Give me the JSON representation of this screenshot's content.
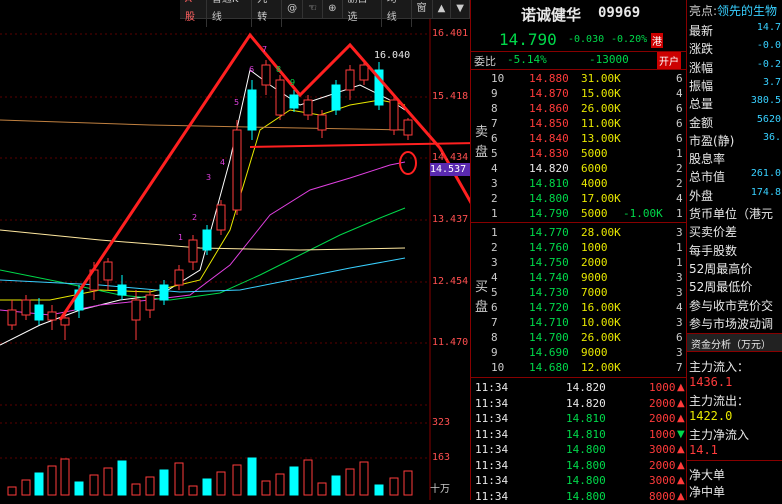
{
  "chart": {
    "tab_a": "A股",
    "toolbar": [
      "普通K线",
      "九转",
      "@",
      "☜",
      "⊕",
      "删自选",
      "均线",
      "窗",
      "▲",
      "▼"
    ],
    "price_ticks": [
      "16.401",
      "15.418",
      "14.434",
      "13.437",
      "12.454",
      "11.470"
    ],
    "current_price_tag": "14.537",
    "high_label": "16.040",
    "volume_ticks": [
      "323",
      "163",
      "十万"
    ],
    "countdown_left": [
      "1",
      "2",
      "3",
      "4",
      "5",
      "6",
      "7"
    ],
    "countdown_right": [
      "8",
      "9"
    ]
  },
  "quote": {
    "name": "诺诚健华",
    "code": "09969",
    "price": "14.790",
    "change": "-0.030",
    "change_pct": "-0.20%",
    "market_tag": "港",
    "weibi_label": "委比",
    "weibi_pct": "-5.14%",
    "weibi_val": "-13000",
    "open_btn": "开户",
    "sell_label": [
      "卖",
      "盘"
    ],
    "buy_label": [
      "买",
      "盘"
    ],
    "asks": [
      {
        "lvl": "10",
        "price": "14.880",
        "vol": "31.00K",
        "cnt": "6"
      },
      {
        "lvl": "9",
        "price": "14.870",
        "vol": "15.00K",
        "cnt": "4"
      },
      {
        "lvl": "8",
        "price": "14.860",
        "vol": "26.00K",
        "cnt": "6"
      },
      {
        "lvl": "7",
        "price": "14.850",
        "vol": "11.00K",
        "cnt": "6"
      },
      {
        "lvl": "6",
        "price": "14.840",
        "vol": "13.00K",
        "cnt": "6"
      },
      {
        "lvl": "5",
        "price": "14.830",
        "vol": "5000",
        "cnt": "1"
      },
      {
        "lvl": "4",
        "price": "14.820",
        "vol": "6000",
        "cnt": "2"
      },
      {
        "lvl": "3",
        "price": "14.810",
        "vol": "4000",
        "cnt": "2"
      },
      {
        "lvl": "2",
        "price": "14.800",
        "vol": "17.00K",
        "cnt": "4"
      },
      {
        "lvl": "1",
        "price": "14.790",
        "vol": "5000",
        "cnt": "1",
        "chg": "-1.00K"
      }
    ],
    "bids": [
      {
        "lvl": "1",
        "price": "14.770",
        "vol": "28.00K",
        "cnt": "3"
      },
      {
        "lvl": "2",
        "price": "14.760",
        "vol": "1000",
        "cnt": "1"
      },
      {
        "lvl": "3",
        "price": "14.750",
        "vol": "2000",
        "cnt": "1"
      },
      {
        "lvl": "4",
        "price": "14.740",
        "vol": "9000",
        "cnt": "3"
      },
      {
        "lvl": "5",
        "price": "14.730",
        "vol": "7000",
        "cnt": "3"
      },
      {
        "lvl": "6",
        "price": "14.720",
        "vol": "16.00K",
        "cnt": "4"
      },
      {
        "lvl": "7",
        "price": "14.710",
        "vol": "10.00K",
        "cnt": "3"
      },
      {
        "lvl": "8",
        "price": "14.700",
        "vol": "26.00K",
        "cnt": "6"
      },
      {
        "lvl": "9",
        "price": "14.690",
        "vol": "9000",
        "cnt": "3"
      },
      {
        "lvl": "10",
        "price": "14.680",
        "vol": "12.00K",
        "cnt": "7"
      }
    ],
    "trades": [
      {
        "time": "11:34",
        "price": "14.820",
        "vol": "1000",
        "dir": "up"
      },
      {
        "time": "11:34",
        "price": "14.820",
        "vol": "2000",
        "dir": "up"
      },
      {
        "time": "11:34",
        "price": "14.810",
        "vol": "2000",
        "dir": "up"
      },
      {
        "time": "11:34",
        "price": "14.810",
        "vol": "1000",
        "dir": "down"
      },
      {
        "time": "11:34",
        "price": "14.800",
        "vol": "3000",
        "dir": "up"
      },
      {
        "time": "11:34",
        "price": "14.800",
        "vol": "2000",
        "dir": "up"
      },
      {
        "time": "11:34",
        "price": "14.800",
        "vol": "3000",
        "dir": "up"
      },
      {
        "time": "11:34",
        "price": "14.800",
        "vol": "8000",
        "dir": "up"
      }
    ]
  },
  "info": {
    "header_label": "亮点:",
    "header_text": "领先的生物",
    "rows": [
      {
        "label": "最新",
        "value": "14.7"
      },
      {
        "label": "涨跌",
        "value": "-0.0"
      },
      {
        "label": "涨幅",
        "value": "-0.2"
      },
      {
        "label": "振幅",
        "value": "3.7"
      },
      {
        "label": "总量",
        "value": "380.5"
      },
      {
        "label": "金额",
        "value": "5620"
      },
      {
        "label": "市盈(静)",
        "value": "36."
      },
      {
        "label": "股息率",
        "value": ""
      },
      {
        "label": "总市值",
        "value": "261.0"
      },
      {
        "label": "外盘",
        "value": "174.8"
      },
      {
        "label": "货币单位（港元",
        "value": ""
      },
      {
        "label": "买卖价差",
        "value": ""
      },
      {
        "label": "每手股数",
        "value": ""
      },
      {
        "label": "52周最高价",
        "value": ""
      },
      {
        "label": "52周最低价",
        "value": ""
      },
      {
        "label": "参与收市竞价交",
        "value": ""
      },
      {
        "label": "参与市场波动调",
        "value": ""
      }
    ],
    "fund_tab": "资金分析（万元）",
    "flow": [
      {
        "label": "主力流入：",
        "value": "1436.1",
        "color": "red"
      },
      {
        "label": "主力流出：",
        "value": "1422.0",
        "color": "yel"
      },
      {
        "label": "主力净流入",
        "value": "14.1",
        "color": "red"
      }
    ],
    "bottom": [
      "净大单",
      "净中单"
    ]
  },
  "colors": {
    "up": "#ff3b3b",
    "down": "#00ffff",
    "accent": "#e00000"
  }
}
